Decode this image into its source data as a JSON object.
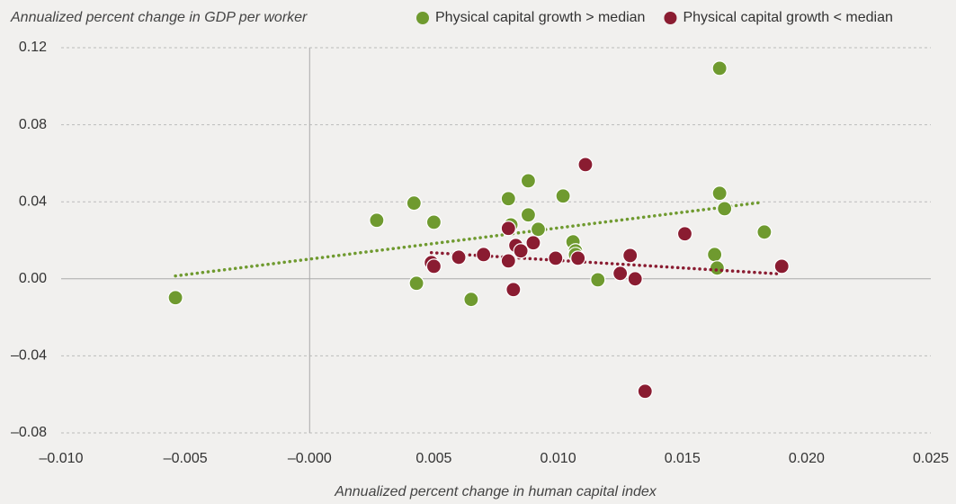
{
  "chart_data": {
    "type": "scatter",
    "y_axis_label": "Annualized percent change in GDP per worker",
    "x_axis_label": "Annualized percent change in human capital index",
    "xlim": [
      -0.01,
      0.025
    ],
    "ylim": [
      -0.08,
      0.12
    ],
    "xticks": [
      {
        "value": -0.01,
        "label": "–0.010"
      },
      {
        "value": -0.005,
        "label": "–0.005"
      },
      {
        "value": 0,
        "label": "–0.000"
      },
      {
        "value": 0.005,
        "label": "0.005"
      },
      {
        "value": 0.01,
        "label": "0.010"
      },
      {
        "value": 0.015,
        "label": "0.015"
      },
      {
        "value": 0.02,
        "label": "0.020"
      },
      {
        "value": 0.025,
        "label": "0.025"
      }
    ],
    "yticks": [
      {
        "value": -0.08,
        "label": "–0.08"
      },
      {
        "value": -0.04,
        "label": "–0.04"
      },
      {
        "value": 0,
        "label": "0.00"
      },
      0.04,
      0.08,
      0.12
    ],
    "grid": true,
    "legend": "top",
    "series": [
      {
        "name": "Physical capital growth > median",
        "color": "#6f9a2f",
        "x": [
          -0.0054,
          0.0027,
          0.0042,
          0.005,
          0.0043,
          0.0065,
          0.008,
          0.0081,
          0.0088,
          0.0088,
          0.0092,
          0.0102,
          0.0106,
          0.0107,
          0.0107,
          0.0116,
          0.0165,
          0.0165,
          0.0167,
          0.0163,
          0.0164,
          0.0183
        ],
        "y": [
          -0.0098,
          0.0304,
          0.0393,
          0.0294,
          -0.0023,
          -0.0107,
          0.0416,
          0.028,
          0.0509,
          0.0332,
          0.0257,
          0.043,
          0.0192,
          0.0145,
          0.0126,
          -0.0005,
          0.1093,
          0.0444,
          0.0364,
          0.0126,
          0.0056,
          0.0243
        ],
        "trend": {
          "x": [
            -0.0054,
            0.0182
          ],
          "y": [
            0.0015,
            0.0397
          ]
        }
      },
      {
        "name": "Physical capital growth < median",
        "color": "#8a1c31",
        "x": [
          0.0111,
          0.008,
          0.0083,
          0.009,
          0.0085,
          0.008,
          0.007,
          0.006,
          0.0049,
          0.005,
          0.0099,
          0.0108,
          0.0082,
          0.0125,
          0.0129,
          0.0131,
          0.0151,
          0.0135,
          0.019
        ],
        "y": [
          0.0593,
          0.0262,
          0.0173,
          0.0187,
          0.0145,
          0.0093,
          0.0126,
          0.0112,
          0.0084,
          0.0065,
          0.0107,
          0.0107,
          -0.0056,
          0.0028,
          0.0121,
          0.0,
          0.0234,
          -0.0584,
          0.0065
        ],
        "trend": {
          "x": [
            0.0049,
            0.019
          ],
          "y": [
            0.0136,
            0.0025
          ]
        }
      }
    ]
  }
}
